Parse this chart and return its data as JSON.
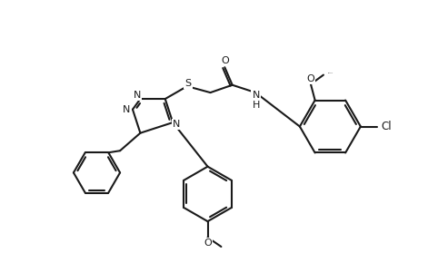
{
  "bg_color": "#ffffff",
  "line_color": "#1a1a1a",
  "lw": 1.5,
  "fs": 8.0,
  "fig_w": 4.71,
  "fig_h": 2.79,
  "xlim": [
    0,
    10
  ],
  "ylim": [
    0,
    6
  ]
}
